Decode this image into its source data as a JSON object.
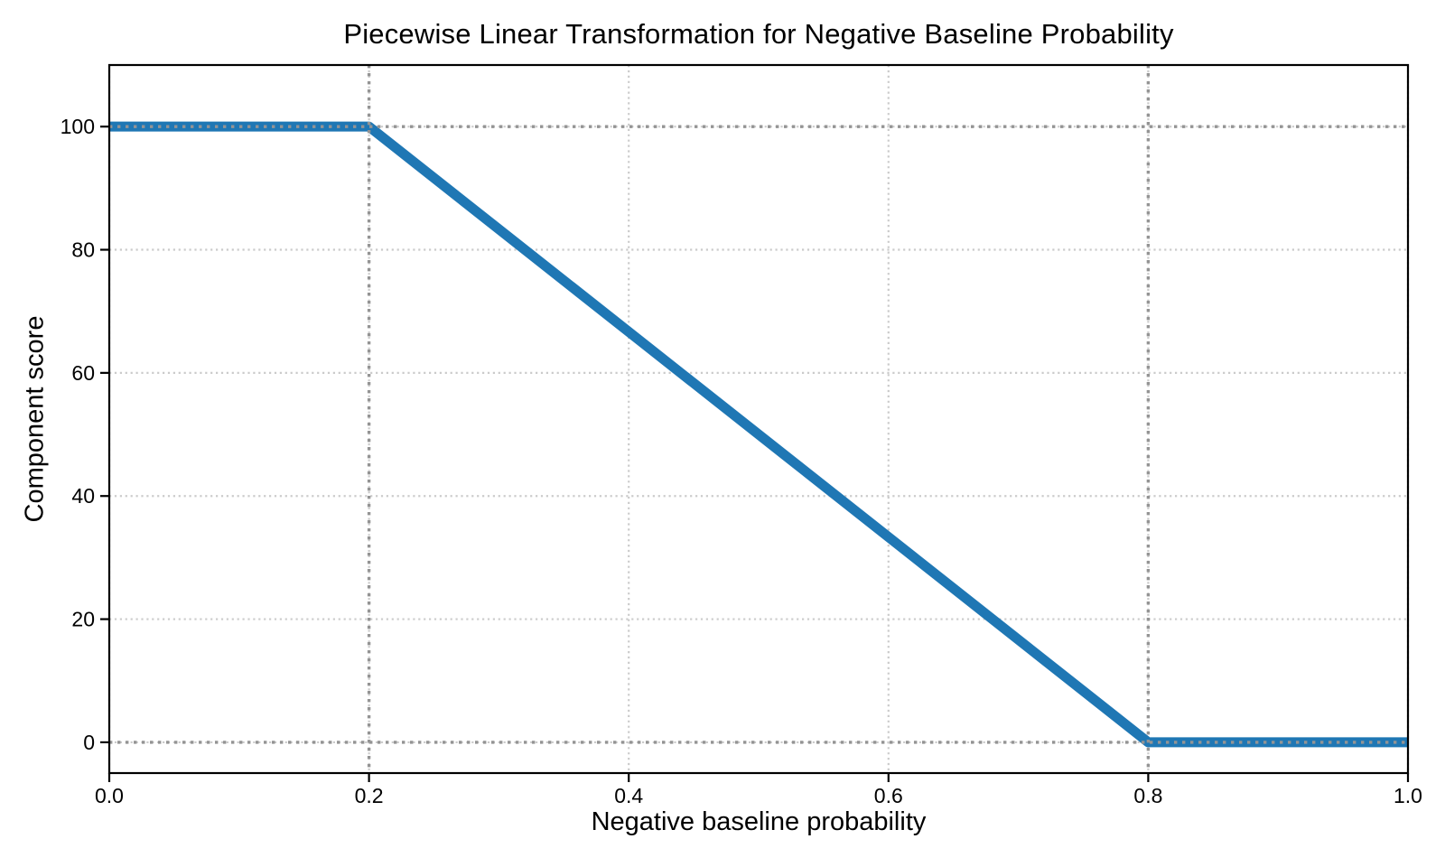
{
  "chart_data": {
    "type": "line",
    "title": "Piecewise Linear Transformation for Negative Baseline Probability",
    "xlabel": "Negative baseline probability",
    "ylabel": "Component score",
    "xlim": [
      0.0,
      1.0
    ],
    "ylim": [
      -5,
      110
    ],
    "x_ticks": [
      0.0,
      0.2,
      0.4,
      0.6,
      0.8,
      1.0
    ],
    "x_tick_labels": [
      "0.0",
      "0.2",
      "0.4",
      "0.6",
      "0.8",
      "1.0"
    ],
    "y_ticks": [
      0,
      20,
      40,
      60,
      80,
      100
    ],
    "y_tick_labels": [
      "0",
      "20",
      "40",
      "60",
      "80",
      "100"
    ],
    "grid": {
      "on": true,
      "style": "dotted",
      "color": "#cbcbcb"
    },
    "series": [
      {
        "name": "component-score",
        "color": "#1f77b4",
        "linewidth": 11,
        "points": [
          [
            0.0,
            100
          ],
          [
            0.2,
            100
          ],
          [
            0.8,
            0
          ],
          [
            1.0,
            0
          ]
        ]
      }
    ],
    "reference_lines": {
      "style": "dotted",
      "color": "#949494",
      "vertical_x": [
        0.2,
        0.8
      ],
      "horizontal_y": [
        100,
        0
      ]
    },
    "axis_color": "#000000",
    "text_color": "#000000",
    "background": "#ffffff",
    "legend": "none"
  }
}
